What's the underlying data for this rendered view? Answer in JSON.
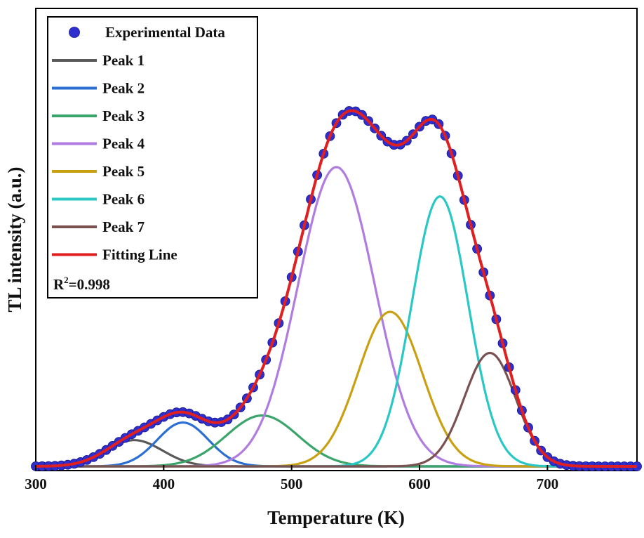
{
  "chart_data": {
    "type": "line",
    "title": "",
    "xlabel": "Temperature (K)",
    "ylabel": "TL intensity (a.u.)",
    "xlim": [
      300,
      770
    ],
    "ylim": [
      0,
      1.0
    ],
    "x_ticks": [
      300,
      400,
      500,
      600,
      700
    ],
    "y_ticks_shown": false,
    "grid": false,
    "legend_position": "top-left",
    "annotation": {
      "r_label": "R",
      "r_sup": "2",
      "r_value": "=0.998"
    },
    "experimental_data": {
      "name": "Experimental Data",
      "color": "#2f2fd0",
      "x_start": 300,
      "x_end": 770,
      "x_step": 5
    },
    "series": [
      {
        "name": "Peak 1",
        "color": "#595959",
        "peak_temperature": 377,
        "amplitude": 0.067,
        "width": 22
      },
      {
        "name": "Peak 2",
        "color": "#2a6fd1",
        "peak_temperature": 415,
        "amplitude": 0.112,
        "width": 20
      },
      {
        "name": "Peak 3",
        "color": "#3aa56a",
        "peak_temperature": 477,
        "amplitude": 0.13,
        "width": 28
      },
      {
        "name": "Peak 4",
        "color": "#b07ce0",
        "peak_temperature": 535,
        "amplitude": 0.765,
        "width": 30
      },
      {
        "name": "Peak 5",
        "color": "#c9a012",
        "peak_temperature": 577,
        "amplitude": 0.395,
        "width": 25
      },
      {
        "name": "Peak 6",
        "color": "#29c8c4",
        "peak_temperature": 616,
        "amplitude": 0.69,
        "width": 22
      },
      {
        "name": "Peak 7",
        "color": "#7a5050",
        "peak_temperature": 655,
        "amplitude": 0.29,
        "width": 20
      }
    ],
    "fitting_line": {
      "name": "Fitting Line",
      "color": "#e02020"
    }
  }
}
